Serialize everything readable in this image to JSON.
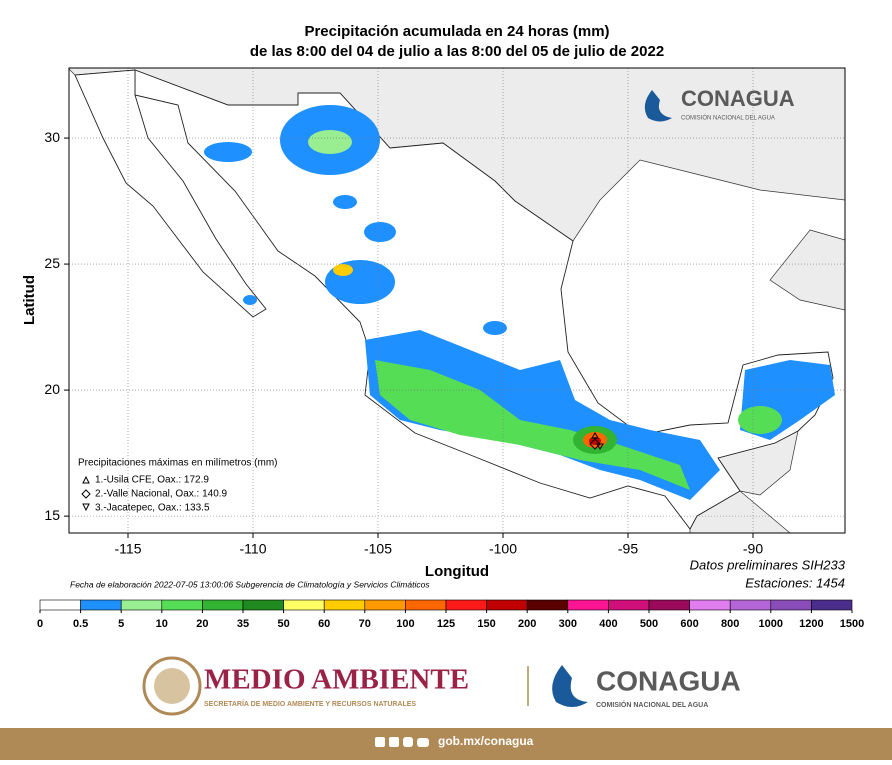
{
  "header": {
    "title_line1": "Precipitación acumulada en 24 horas (mm)",
    "title_line2": "de las 8:00 del 04 de julio a las 8:00 del 05 de julio de 2022"
  },
  "map": {
    "xlim": [
      -117.36,
      -86.32
    ],
    "ylim": [
      14.33,
      32.78
    ],
    "xticks": [
      -115,
      -110,
      -105,
      -100,
      -95,
      -90
    ],
    "yticks": [
      15,
      20,
      25,
      30
    ],
    "xlabel": "Longitud",
    "ylabel": "Latitud",
    "grid": true
  },
  "legend": {
    "title": "Precipitaciones máximas en milímetros (mm)",
    "items": [
      "1.-Usila CFE, Oax.: 172.9",
      "2.-Valle Nacional, Oax.: 140.9",
      "3.-Jacatepec, Oax.: 133.5"
    ]
  },
  "footnote": "Fecha de elaboración 2022-07-05 13:00:06 Subgerencia de Climatología y Servicios Climáticos",
  "notes": [
    "Datos preliminares SIH233",
    "Estaciones:  1454"
  ],
  "colorbar": {
    "ticks": [
      0,
      0.5,
      5,
      10,
      20,
      35,
      50,
      60,
      70,
      100,
      125,
      150,
      200,
      300,
      400,
      500,
      600,
      800,
      1000,
      1200,
      1500
    ],
    "colors": [
      "#ffffff",
      "#1e90ff",
      "#98ee90",
      "#55dd55",
      "#32b432",
      "#1f8a1f",
      "#ffff66",
      "#ffcc00",
      "#ff9900",
      "#ff6600",
      "#ff1a1a",
      "#c00000",
      "#5a0000",
      "#ff1493",
      "#d0107a",
      "#9b0a5a",
      "#e07ef0",
      "#b466d8",
      "#8a4cb8",
      "#4b2d8c"
    ]
  },
  "logo": {
    "name": "CONAGUA",
    "subtitle": "COMISIÓN NACIONAL DEL AGUA"
  },
  "footer": {
    "semarnat": "MEDIO AMBIENTE",
    "semarnat_sub": "SECRETARÍA DE MEDIO AMBIENTE Y RECURSOS NATURALES",
    "conagua": "CONAGUA",
    "conagua_sub": "COMISIÓN NACIONAL DEL AGUA",
    "url": "gob.mx/conagua"
  }
}
